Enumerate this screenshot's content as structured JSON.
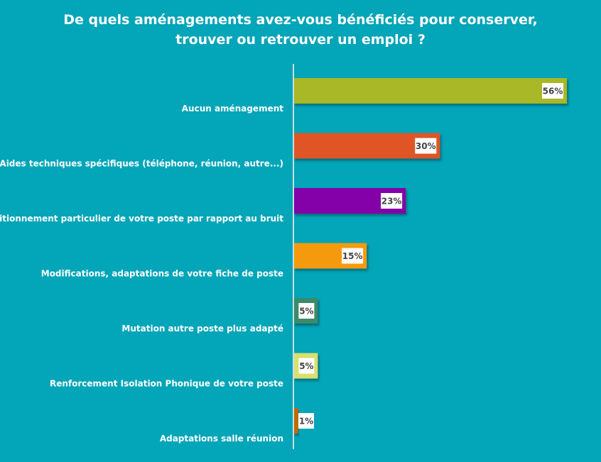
{
  "chart_data": {
    "type": "bar",
    "orientation": "horizontal",
    "title": "De quels aménagements avez-vous bénéficiés pour conserver, trouver ou retrouver un emploi ?",
    "title_lines": [
      "De quels aménagements avez-vous bénéficiés pour conserver,",
      "trouver ou retrouver un emploi ?"
    ],
    "categories": [
      "Aucun aménagement",
      "Aides techniques spécifiques (téléphone, réunion, autre...)",
      "Positionnement particulier de votre poste par rapport au bruit",
      "Modifications, adaptations de votre fiche de poste",
      "Mutation autre poste plus adapté",
      "Renforcement Isolation Phonique de votre poste",
      "Adaptations salle réunion"
    ],
    "values": [
      56,
      30,
      23,
      15,
      5,
      5,
      1
    ],
    "labels": [
      "56%",
      "30%",
      "23%",
      "15%",
      "5%",
      "5%",
      "1%"
    ],
    "colors": [
      "#a8b828",
      "#e05428",
      "#8400a8",
      "#f59a10",
      "#3a8a6a",
      "#d8e070",
      "#c06a00"
    ],
    "xlim": [
      0,
      56
    ],
    "grid": false,
    "legend": "none"
  }
}
